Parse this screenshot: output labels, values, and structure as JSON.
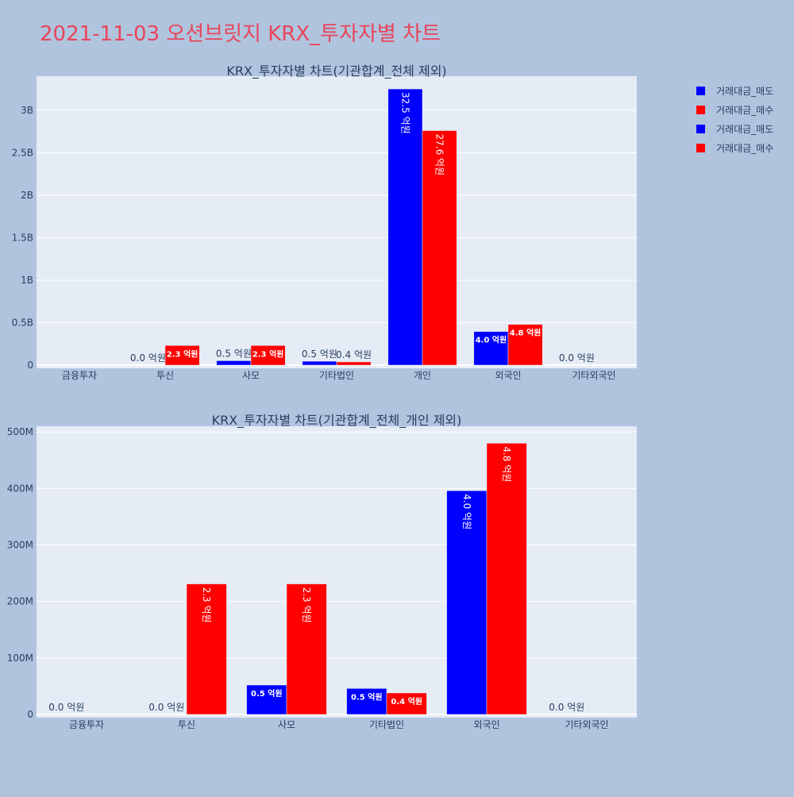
{
  "page_title": "2021-11-03 오션브릿지 KRX_투자자별 차트",
  "legend": [
    {
      "label": "거래대금_매도",
      "color": "#0000ff"
    },
    {
      "label": "거래대금_매수",
      "color": "#ff0000"
    },
    {
      "label": "거래대금_매도",
      "color": "#0000ff"
    },
    {
      "label": "거래대금_매수",
      "color": "#ff0000"
    }
  ],
  "chart_data": [
    {
      "type": "bar",
      "title": "KRX_투자자별 차트(기관합계_전체 제외)",
      "categories": [
        "금융투자",
        "투신",
        "사모",
        "기타법인",
        "개인",
        "외국인",
        "기타외국인"
      ],
      "ylim": [
        0,
        3400000000
      ],
      "yticks": [
        0,
        500000000,
        1000000000,
        1500000000,
        2000000000,
        2500000000,
        3000000000
      ],
      "ytick_labels": [
        "0",
        "0.5B",
        "1B",
        "1.5B",
        "2B",
        "2.5B",
        "3B"
      ],
      "series": [
        {
          "name": "거래대금_매도",
          "color": "#0000ff",
          "values": [
            0,
            0,
            52000000,
            46000000,
            3250000000,
            396000000,
            0
          ],
          "labels": [
            "",
            "0.0 억원",
            "0.5 억원",
            "0.5 억원",
            "32.5 억원",
            "4.0 억원",
            "0.0 억원"
          ]
        },
        {
          "name": "거래대금_매수",
          "color": "#ff0000",
          "values": [
            0,
            231000000,
            231000000,
            38000000,
            2760000000,
            480000000,
            0
          ],
          "labels": [
            "",
            "2.3 억원",
            "2.3 억원",
            "0.4 억원",
            "27.6 억원",
            "4.8 억원",
            ""
          ]
        }
      ]
    },
    {
      "type": "bar",
      "title": "KRX_투자자별 차트(기관합계_전체_개인 제외)",
      "categories": [
        "금융투자",
        "투신",
        "사모",
        "기타법인",
        "외국인",
        "기타외국인"
      ],
      "ylim": [
        0,
        510000000
      ],
      "yticks": [
        0,
        100000000,
        200000000,
        300000000,
        400000000,
        500000000
      ],
      "ytick_labels": [
        "0",
        "100M",
        "200M",
        "300M",
        "400M",
        "500M"
      ],
      "series": [
        {
          "name": "거래대금_매도",
          "color": "#0000ff",
          "values": [
            0,
            0,
            52000000,
            46000000,
            396000000,
            0
          ],
          "labels": [
            "0.0 억원",
            "0.0 억원",
            "0.5 억원",
            "0.5 억원",
            "4.0 억원",
            "0.0 억원"
          ]
        },
        {
          "name": "거래대금_매수",
          "color": "#ff0000",
          "values": [
            0,
            231000000,
            231000000,
            38000000,
            480000000,
            0
          ],
          "labels": [
            "",
            "2.3 억원",
            "2.3 억원",
            "0.4 억원",
            "4.8 억원",
            ""
          ]
        }
      ]
    }
  ]
}
